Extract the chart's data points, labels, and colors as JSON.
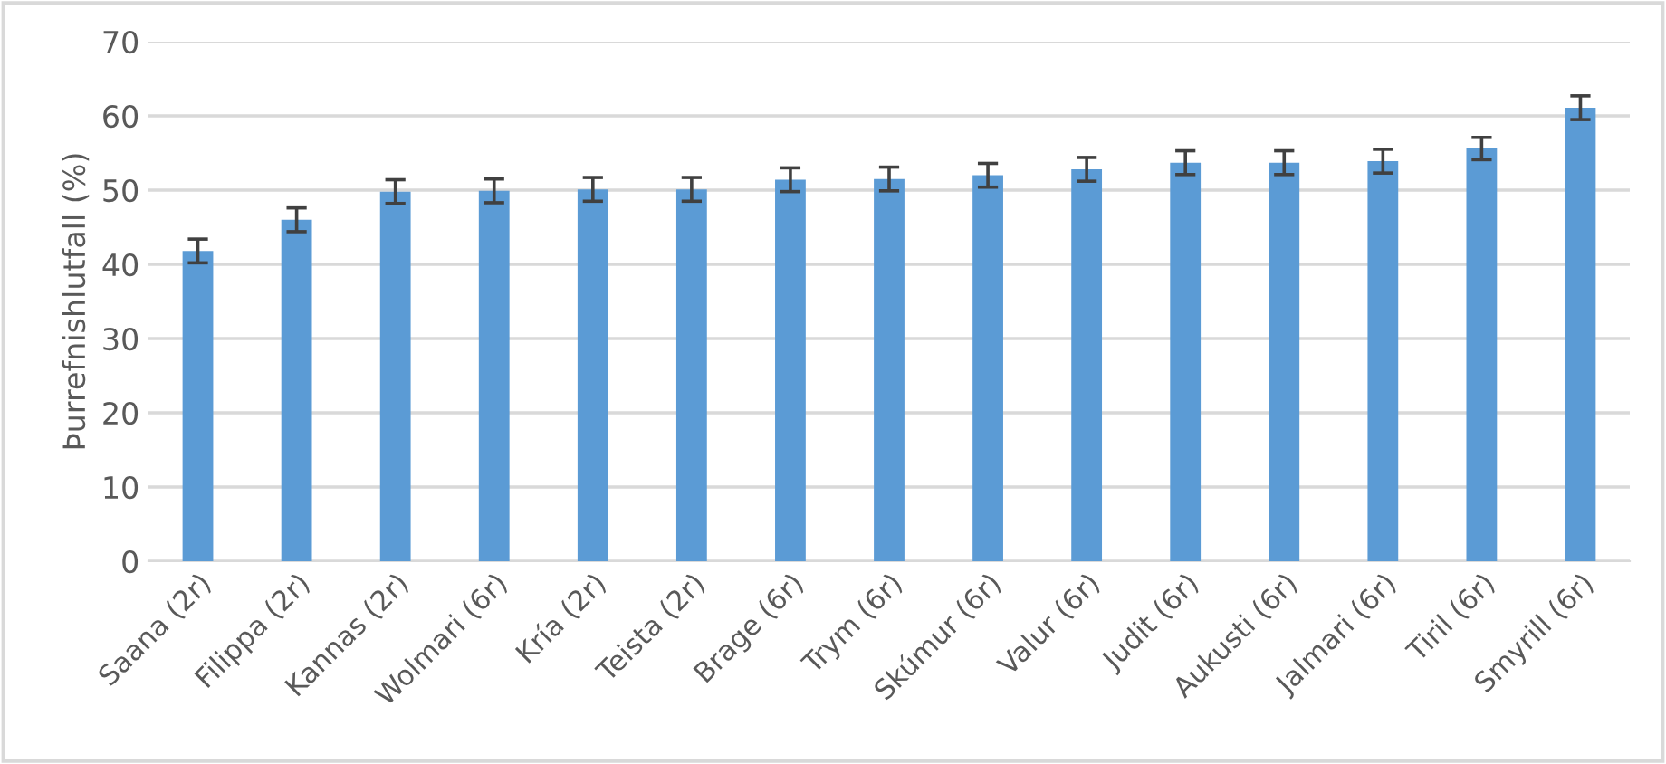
{
  "chart_data": {
    "type": "bar",
    "ylabel": "Þurrefnishlutfall (%)",
    "categories": [
      "Saana (2r)",
      "Filippa (2r)",
      "Kannas (2r)",
      "Wolmari (6r)",
      "Kría (2r)",
      "Teista (2r)",
      "Brage (6r)",
      "Trym (6r)",
      "Skúmur (6r)",
      "Valur (6r)",
      "Judit (6r)",
      "Aukusti (6r)",
      "Jalmari (6r)",
      "Tiril (6r)",
      "Smyrill (6r)"
    ],
    "values": [
      41.8,
      46.0,
      49.8,
      49.9,
      50.1,
      50.1,
      51.4,
      51.5,
      52.0,
      52.8,
      53.7,
      53.7,
      53.9,
      55.6,
      61.1
    ],
    "errors": [
      1.6,
      1.6,
      1.6,
      1.6,
      1.6,
      1.6,
      1.6,
      1.6,
      1.6,
      1.6,
      1.6,
      1.6,
      1.6,
      1.5,
      1.6
    ],
    "color": "#5b9bd5",
    "ylim": [
      0,
      70
    ],
    "yticks": [
      0,
      10,
      20,
      30,
      40,
      50,
      60,
      70
    ],
    "grid": "y",
    "legend": false
  }
}
